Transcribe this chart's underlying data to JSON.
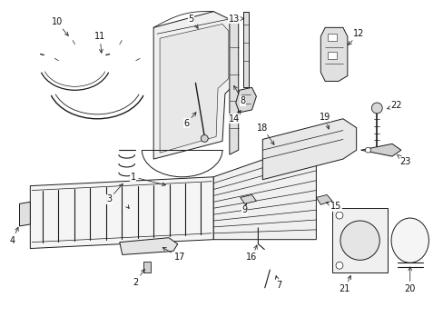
{
  "bg_color": "#ffffff",
  "fig_width": 4.89,
  "fig_height": 3.6,
  "dpi": 100,
  "lc": "#1a1a1a",
  "lw": 0.7
}
